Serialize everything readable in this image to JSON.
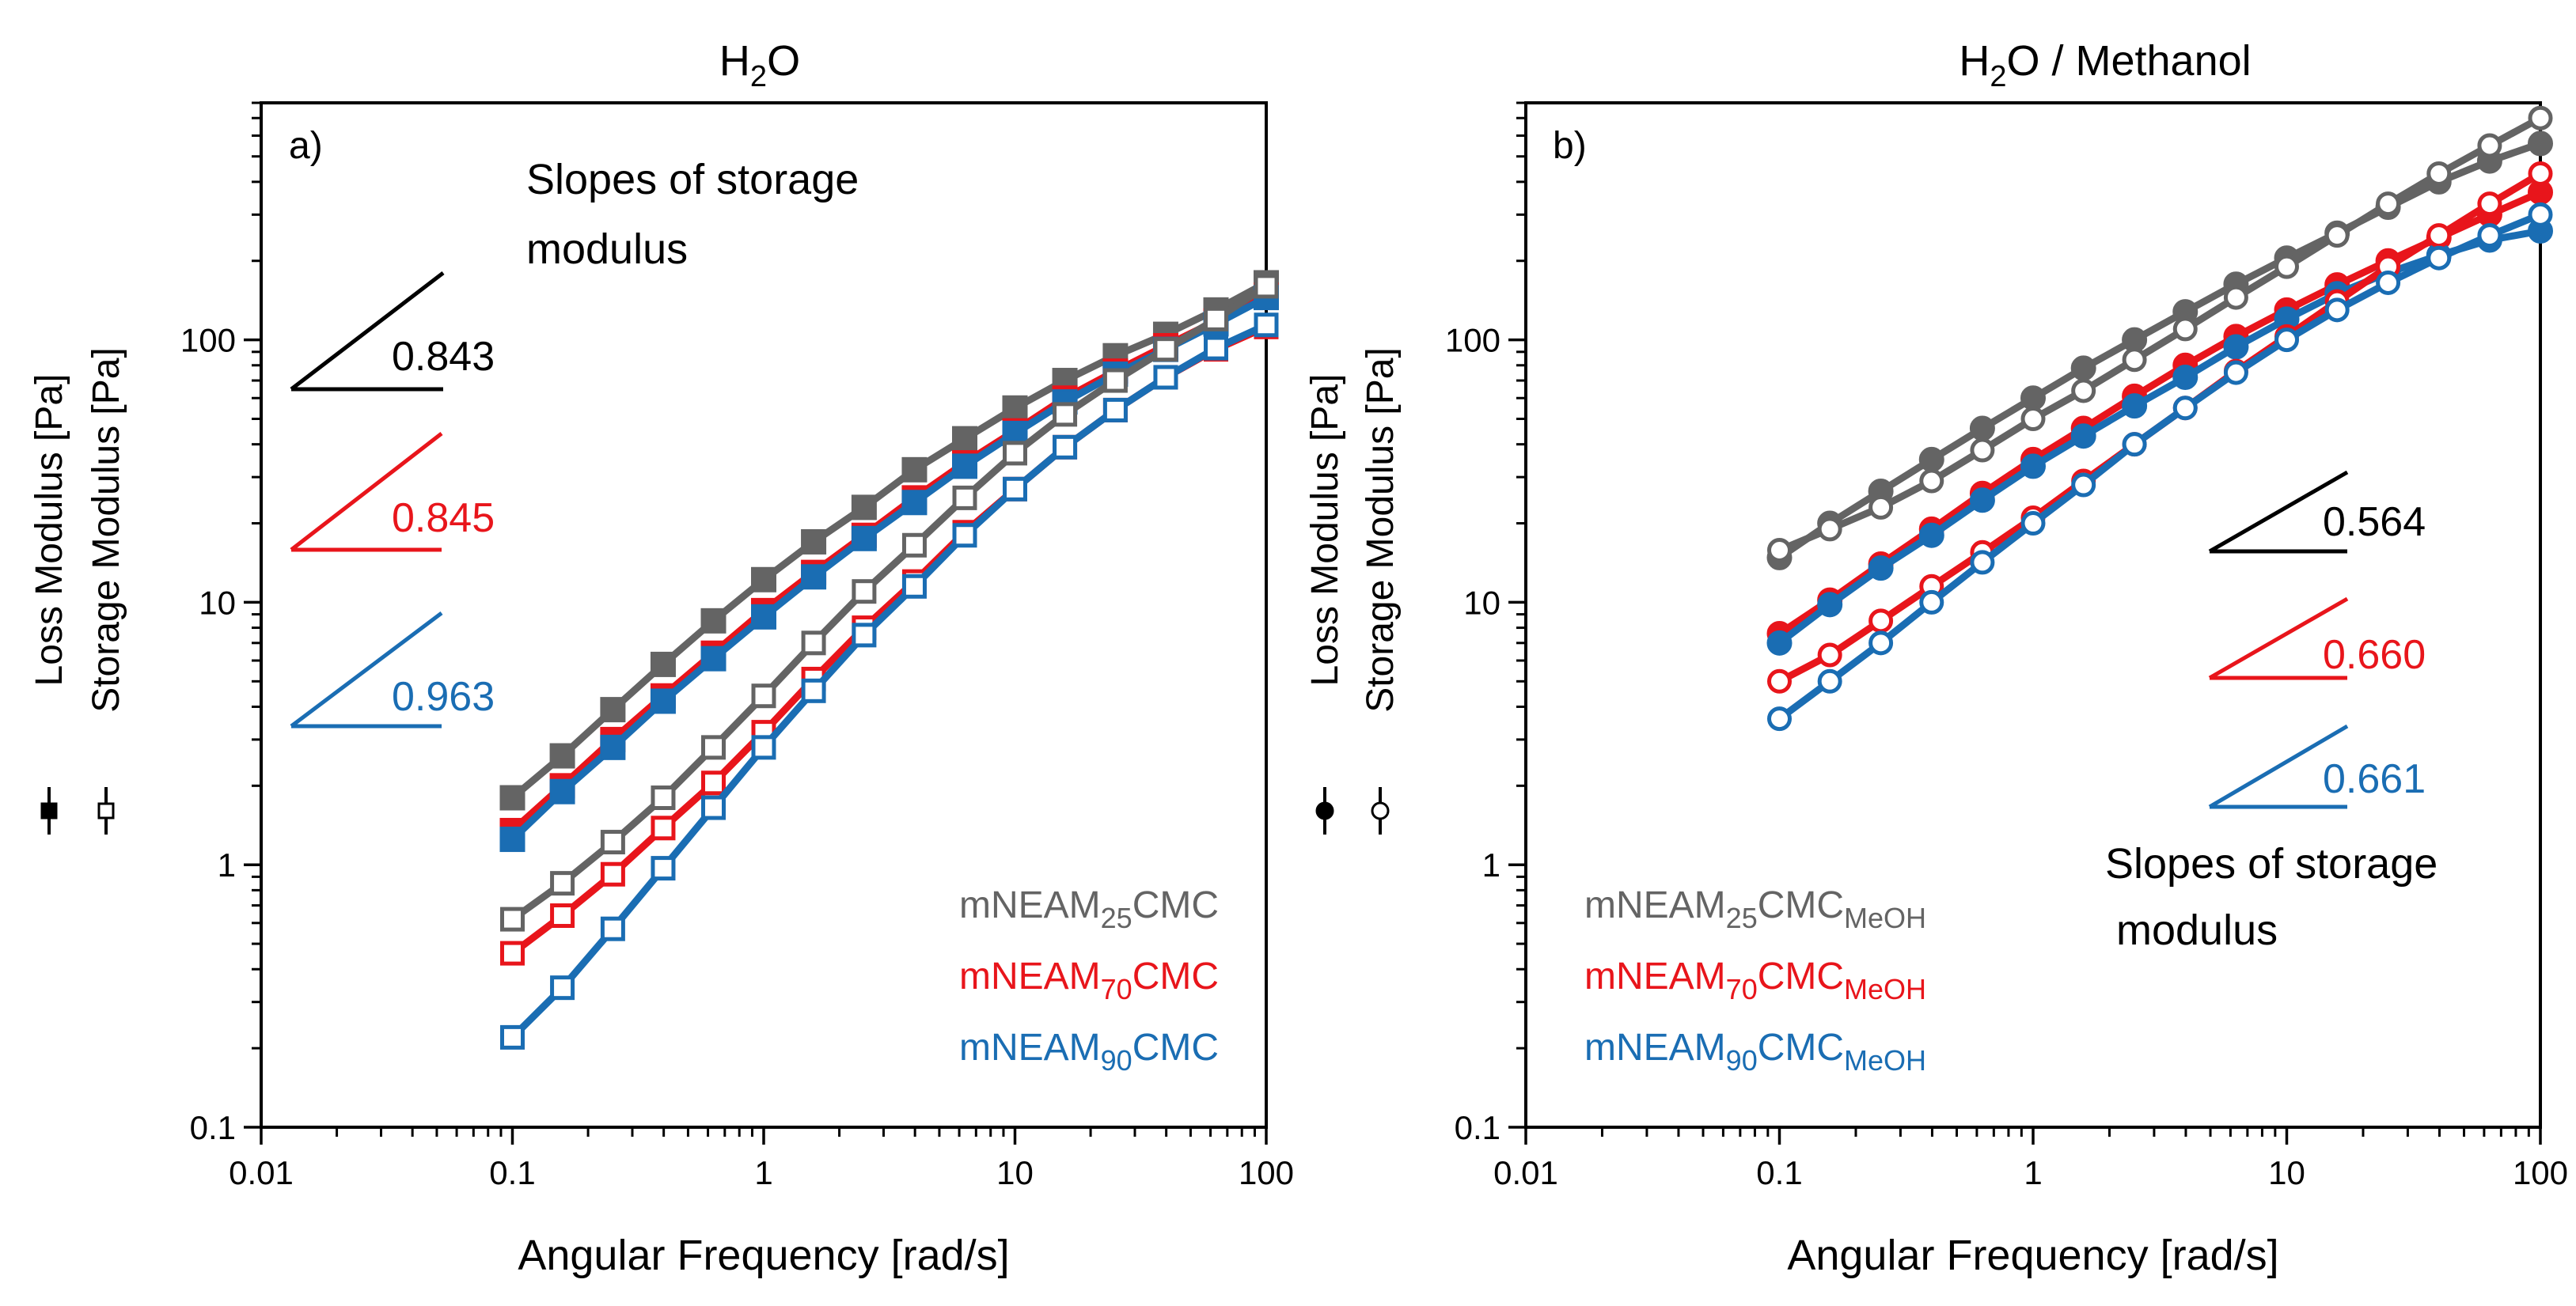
{
  "figure": {
    "colors": {
      "black": "#000000",
      "grey": "#646464",
      "red": "#e8151b",
      "blue": "#1a6db3"
    }
  },
  "chart_data": [
    {
      "type": "line",
      "panel_label": "a)",
      "title": "H2O",
      "title_parts": {
        "base": "H",
        "sub": "2",
        "rest": "O"
      },
      "xlabel": "Angular Frequency [rad/s]",
      "ylabel_loss": "Loss Modulus [Pa]",
      "ylabel_storage": "Storage Modulus [Pa]",
      "xscale": "log",
      "yscale": "log",
      "xlim": [
        0.01,
        100
      ],
      "ylim": [
        0.1,
        800
      ],
      "x_ticks": [
        0.01,
        0.1,
        1,
        10,
        100
      ],
      "x_tick_labels": [
        "0.01",
        "0.1",
        "1",
        "10",
        "100"
      ],
      "y_ticks": [
        0.1,
        1,
        10,
        100
      ],
      "y_tick_labels": [
        "0.1",
        "1",
        "10",
        "100"
      ],
      "marker_loss": "filled-square",
      "marker_storage": "open-square",
      "x": [
        0.1,
        0.158,
        0.251,
        0.398,
        0.631,
        1,
        1.58,
        2.51,
        3.98,
        6.31,
        10,
        15.8,
        25.1,
        39.8,
        63.1,
        100
      ],
      "series": [
        {
          "name": "mNEAM25CMC loss",
          "group": "mNEAM25CMC",
          "kind": "loss",
          "color": "#646464",
          "values": [
            1.8,
            2.6,
            3.9,
            5.8,
            8.5,
            12.2,
            17,
            23,
            32,
            42,
            55,
            70,
            87,
            105,
            130,
            165
          ]
        },
        {
          "name": "mNEAM25CMC storage",
          "group": "mNEAM25CMC",
          "kind": "storage",
          "color": "#646464",
          "values": [
            0.62,
            0.85,
            1.22,
            1.8,
            2.8,
            4.4,
            7,
            11,
            16.5,
            25,
            37,
            52,
            70,
            92,
            120,
            160
          ]
        },
        {
          "name": "mNEAM70CMC loss",
          "group": "mNEAM70CMC",
          "kind": "loss",
          "color": "#e8151b",
          "values": [
            1.35,
            2.0,
            3.0,
            4.4,
            6.4,
            9.3,
            13,
            18,
            25,
            34,
            45,
            60,
            76,
            95,
            118,
            148
          ]
        },
        {
          "name": "mNEAM70CMC storage",
          "group": "mNEAM70CMC",
          "kind": "storage",
          "color": "#e8151b",
          "values": [
            0.46,
            0.64,
            0.92,
            1.38,
            2.05,
            3.2,
            5.1,
            8,
            12,
            18.5,
            27,
            39,
            54,
            72,
            92,
            112
          ]
        },
        {
          "name": "mNEAM90CMC loss",
          "group": "mNEAM90CMC",
          "kind": "loss",
          "color": "#1a6db3",
          "values": [
            1.25,
            1.9,
            2.8,
            4.2,
            6.1,
            8.8,
            12.5,
            17.5,
            24,
            33,
            44,
            58,
            74,
            92,
            115,
            145
          ]
        },
        {
          "name": "mNEAM90CMC storage",
          "group": "mNEAM90CMC",
          "kind": "storage",
          "color": "#1a6db3",
          "values": [
            0.22,
            0.34,
            0.57,
            0.97,
            1.65,
            2.8,
            4.6,
            7.5,
            11.5,
            18,
            27,
            39,
            54,
            72,
            93,
            114
          ]
        }
      ],
      "legend": [
        {
          "base": "mNEAM",
          "sub": "25",
          "rest": "CMC",
          "sub2": "",
          "color": "#646464"
        },
        {
          "base": "mNEAM",
          "sub": "70",
          "rest": "CMC",
          "sub2": "",
          "color": "#e8151b"
        },
        {
          "base": "mNEAM",
          "sub": "90",
          "rest": "CMC",
          "sub2": "",
          "color": "#1a6db3"
        }
      ],
      "legend_position": "bottom-right",
      "slopes_caption": [
        "Slopes of storage",
        "modulus"
      ],
      "slopes": [
        {
          "value": "0.843",
          "color": "#000000"
        },
        {
          "value": "0.845",
          "color": "#e8151b"
        },
        {
          "value": "0.963",
          "color": "#1a6db3"
        }
      ]
    },
    {
      "type": "line",
      "panel_label": "b)",
      "title": "H2O / Methanol",
      "title_parts": {
        "base": "H",
        "sub": "2",
        "rest": "O / Methanol"
      },
      "xlabel": "Angular Frequency [rad/s]",
      "ylabel_loss": "Loss Modulus [Pa]",
      "ylabel_storage": "Storage Modulus [Pa]",
      "xscale": "log",
      "yscale": "log",
      "xlim": [
        0.01,
        100
      ],
      "ylim": [
        0.1,
        800
      ],
      "x_ticks": [
        0.01,
        0.1,
        1,
        10,
        100
      ],
      "x_tick_labels": [
        "0.01",
        "0.1",
        "1",
        "10",
        "100"
      ],
      "y_ticks": [
        0.1,
        1,
        10,
        100
      ],
      "y_tick_labels": [
        "0.1",
        "1",
        "10",
        "100"
      ],
      "marker_loss": "filled-circle",
      "marker_storage": "open-circle",
      "x": [
        0.1,
        0.158,
        0.251,
        0.398,
        0.631,
        1,
        1.58,
        2.51,
        3.98,
        6.31,
        10,
        15.8,
        25.1,
        39.8,
        63.1,
        100
      ],
      "series": [
        {
          "name": "mNEAM25CMCMeOH loss",
          "group": "mNEAM25CMCMeOH",
          "kind": "loss",
          "color": "#646464",
          "values": [
            14.8,
            20,
            26.5,
            35,
            46,
            60,
            78,
            100,
            128,
            163,
            205,
            255,
            320,
            400,
            480,
            560
          ]
        },
        {
          "name": "mNEAM25CMCMeOH storage",
          "group": "mNEAM25CMCMeOH",
          "kind": "storage",
          "color": "#646464",
          "values": [
            15.8,
            19,
            23,
            29,
            38,
            50,
            64,
            84,
            110,
            145,
            190,
            250,
            330,
            430,
            550,
            700
          ]
        },
        {
          "name": "mNEAM70CMCMeOH loss",
          "group": "mNEAM70CMCMeOH",
          "kind": "loss",
          "color": "#e8151b",
          "values": [
            7.6,
            10.2,
            14,
            19,
            26,
            35,
            46,
            61,
            80,
            103,
            130,
            162,
            200,
            245,
            300,
            365
          ]
        },
        {
          "name": "mNEAM70CMCMeOH storage",
          "group": "mNEAM70CMCMeOH",
          "kind": "storage",
          "color": "#e8151b",
          "values": [
            5,
            6.3,
            8.5,
            11.5,
            15.5,
            21,
            29,
            40,
            55,
            76,
            103,
            140,
            190,
            250,
            330,
            430
          ]
        },
        {
          "name": "mNEAM90CMCMeOH loss",
          "group": "mNEAM90CMCMeOH",
          "kind": "loss",
          "color": "#1a6db3",
          "values": [
            7,
            9.8,
            13.5,
            18,
            24.5,
            33,
            43,
            56,
            72,
            94,
            120,
            150,
            180,
            210,
            240,
            260
          ]
        },
        {
          "name": "mNEAM90CMCMeOH storage",
          "group": "mNEAM90CMCMeOH",
          "kind": "storage",
          "color": "#1a6db3",
          "values": [
            3.6,
            5,
            7,
            10,
            14.2,
            20,
            28,
            40,
            55,
            75,
            100,
            130,
            165,
            205,
            250,
            300
          ]
        }
      ],
      "legend": [
        {
          "base": "mNEAM",
          "sub": "25",
          "rest": "CMC",
          "sub2": "MeOH",
          "color": "#646464"
        },
        {
          "base": "mNEAM",
          "sub": "70",
          "rest": "CMC",
          "sub2": "MeOH",
          "color": "#e8151b"
        },
        {
          "base": "mNEAM",
          "sub": "90",
          "rest": "CMC",
          "sub2": "MeOH",
          "color": "#1a6db3"
        }
      ],
      "legend_position": "bottom-left",
      "slopes_caption": [
        "Slopes of storage",
        "modulus"
      ],
      "slopes": [
        {
          "value": "0.564",
          "color": "#000000"
        },
        {
          "value": "0.660",
          "color": "#e8151b"
        },
        {
          "value": "0.661",
          "color": "#1a6db3"
        }
      ]
    }
  ]
}
